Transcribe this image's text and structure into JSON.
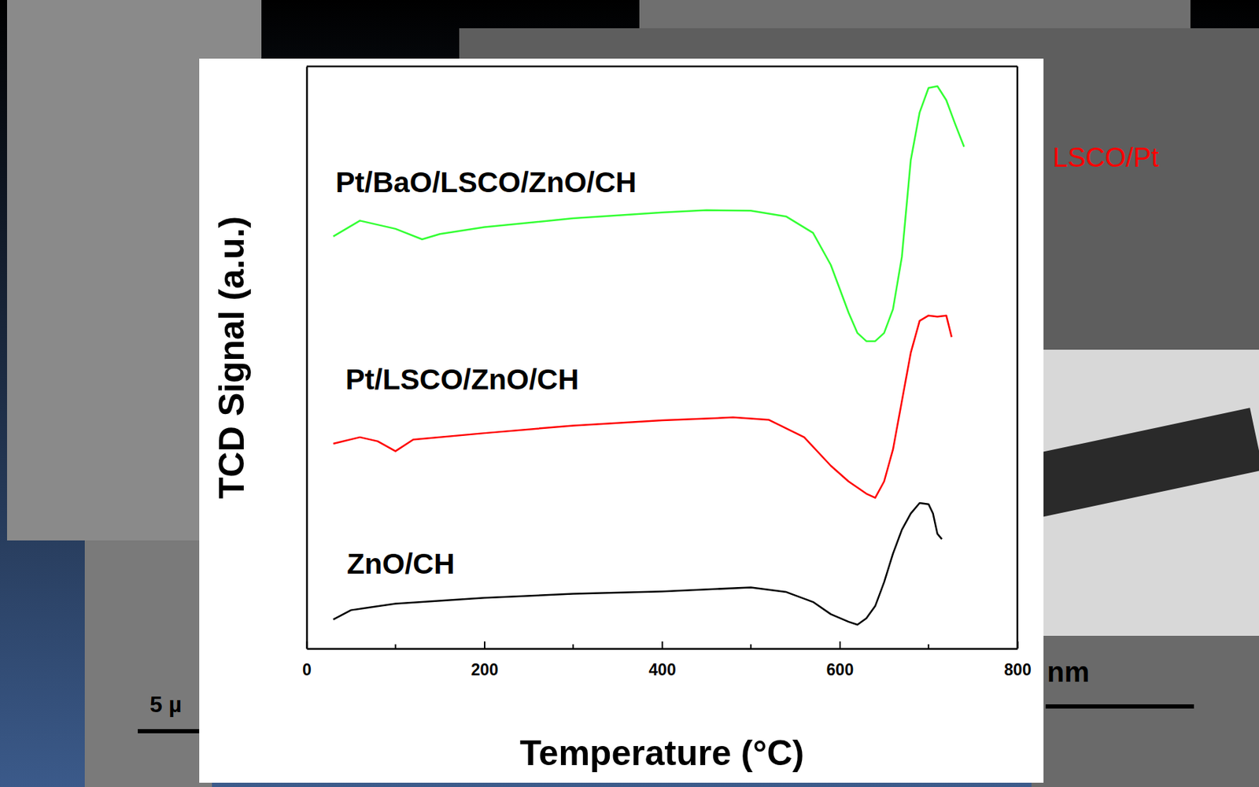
{
  "chart_data": {
    "type": "line",
    "xlabel": "Temperature (°C)",
    "ylabel": "TCD Signal (a.u.)",
    "xlim": [
      0,
      800
    ],
    "xticks": [
      0,
      200,
      400,
      600,
      800
    ],
    "ylim": [
      0,
      100
    ],
    "tick_labels": "x",
    "grid": false,
    "annotations": [
      "LSCO/Pt",
      "5 µ",
      "nm"
    ],
    "series": [
      {
        "name": "Pt/BaO/LSCO/ZnO/CH",
        "color": "#33ff33",
        "x": [
          30,
          60,
          100,
          130,
          150,
          200,
          300,
          400,
          450,
          500,
          540,
          570,
          590,
          600,
          610,
          620,
          630,
          640,
          650,
          660,
          670,
          680,
          690,
          700,
          710,
          720,
          730,
          740
        ],
        "values": [
          70.8,
          73.5,
          72.1,
          70.3,
          71.2,
          72.4,
          73.9,
          74.9,
          75.3,
          75.2,
          74.2,
          71.4,
          65.9,
          61.8,
          57.7,
          54.2,
          52.8,
          52.8,
          54.2,
          58.3,
          67.3,
          83.9,
          92.1,
          96.3,
          96.6,
          94.2,
          90.1,
          86.2
        ]
      },
      {
        "name": "Pt/LSCO/ZnO/CH",
        "color": "#ff0000",
        "x": [
          30,
          60,
          80,
          100,
          120,
          200,
          300,
          400,
          480,
          520,
          560,
          590,
          610,
          630,
          640,
          650,
          660,
          670,
          680,
          690,
          700,
          710,
          720,
          726
        ],
        "values": [
          35.2,
          36.3,
          35.6,
          33.9,
          35.9,
          37.0,
          38.3,
          39.2,
          39.7,
          39.3,
          36.3,
          31.4,
          28.7,
          26.6,
          25.9,
          28.7,
          34.2,
          42.5,
          50.8,
          56.3,
          57.2,
          57.0,
          57.2,
          53.5
        ]
      },
      {
        "name": "ZnO/CH",
        "color": "#000000",
        "x": [
          30,
          50,
          100,
          200,
          300,
          400,
          500,
          540,
          570,
          590,
          610,
          620,
          630,
          640,
          650,
          660,
          670,
          680,
          690,
          700,
          705,
          710,
          715
        ],
        "values": [
          5.0,
          6.6,
          7.7,
          8.7,
          9.4,
          9.8,
          10.5,
          9.7,
          8.0,
          5.9,
          4.6,
          4.1,
          5.2,
          7.3,
          11.4,
          16.3,
          20.4,
          23.2,
          25.0,
          24.8,
          23.2,
          19.7,
          18.8
        ]
      }
    ]
  }
}
